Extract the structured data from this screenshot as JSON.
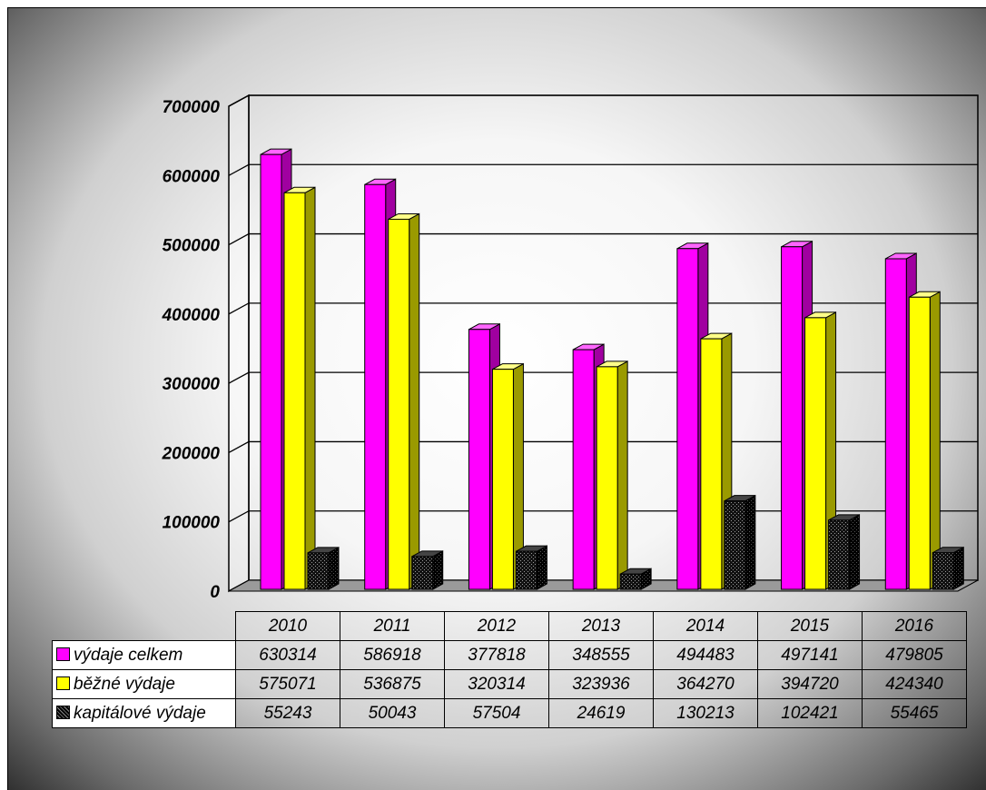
{
  "chart_data": {
    "type": "bar",
    "categories": [
      "2010",
      "2011",
      "2012",
      "2013",
      "2014",
      "2015",
      "2016"
    ],
    "series": [
      {
        "name": "výdaje celkem",
        "color": "#ff00ff",
        "values": [
          630314,
          586918,
          377818,
          348555,
          494483,
          497141,
          479805
        ]
      },
      {
        "name": "běžné výdaje",
        "color": "#ffff00",
        "values": [
          575071,
          536875,
          320314,
          323936,
          364270,
          394720,
          424340
        ]
      },
      {
        "name": "kapitálové výdaje",
        "color": "#000000",
        "values": [
          55243,
          50043,
          57504,
          24619,
          130213,
          102421,
          55465
        ]
      }
    ],
    "ylim": [
      0,
      700000
    ],
    "yticks": [
      "0",
      "100000",
      "200000",
      "300000",
      "400000",
      "500000",
      "600000",
      "700000"
    ],
    "grid": true,
    "style": "3d-clustered-column",
    "legend": "data-table-below"
  }
}
